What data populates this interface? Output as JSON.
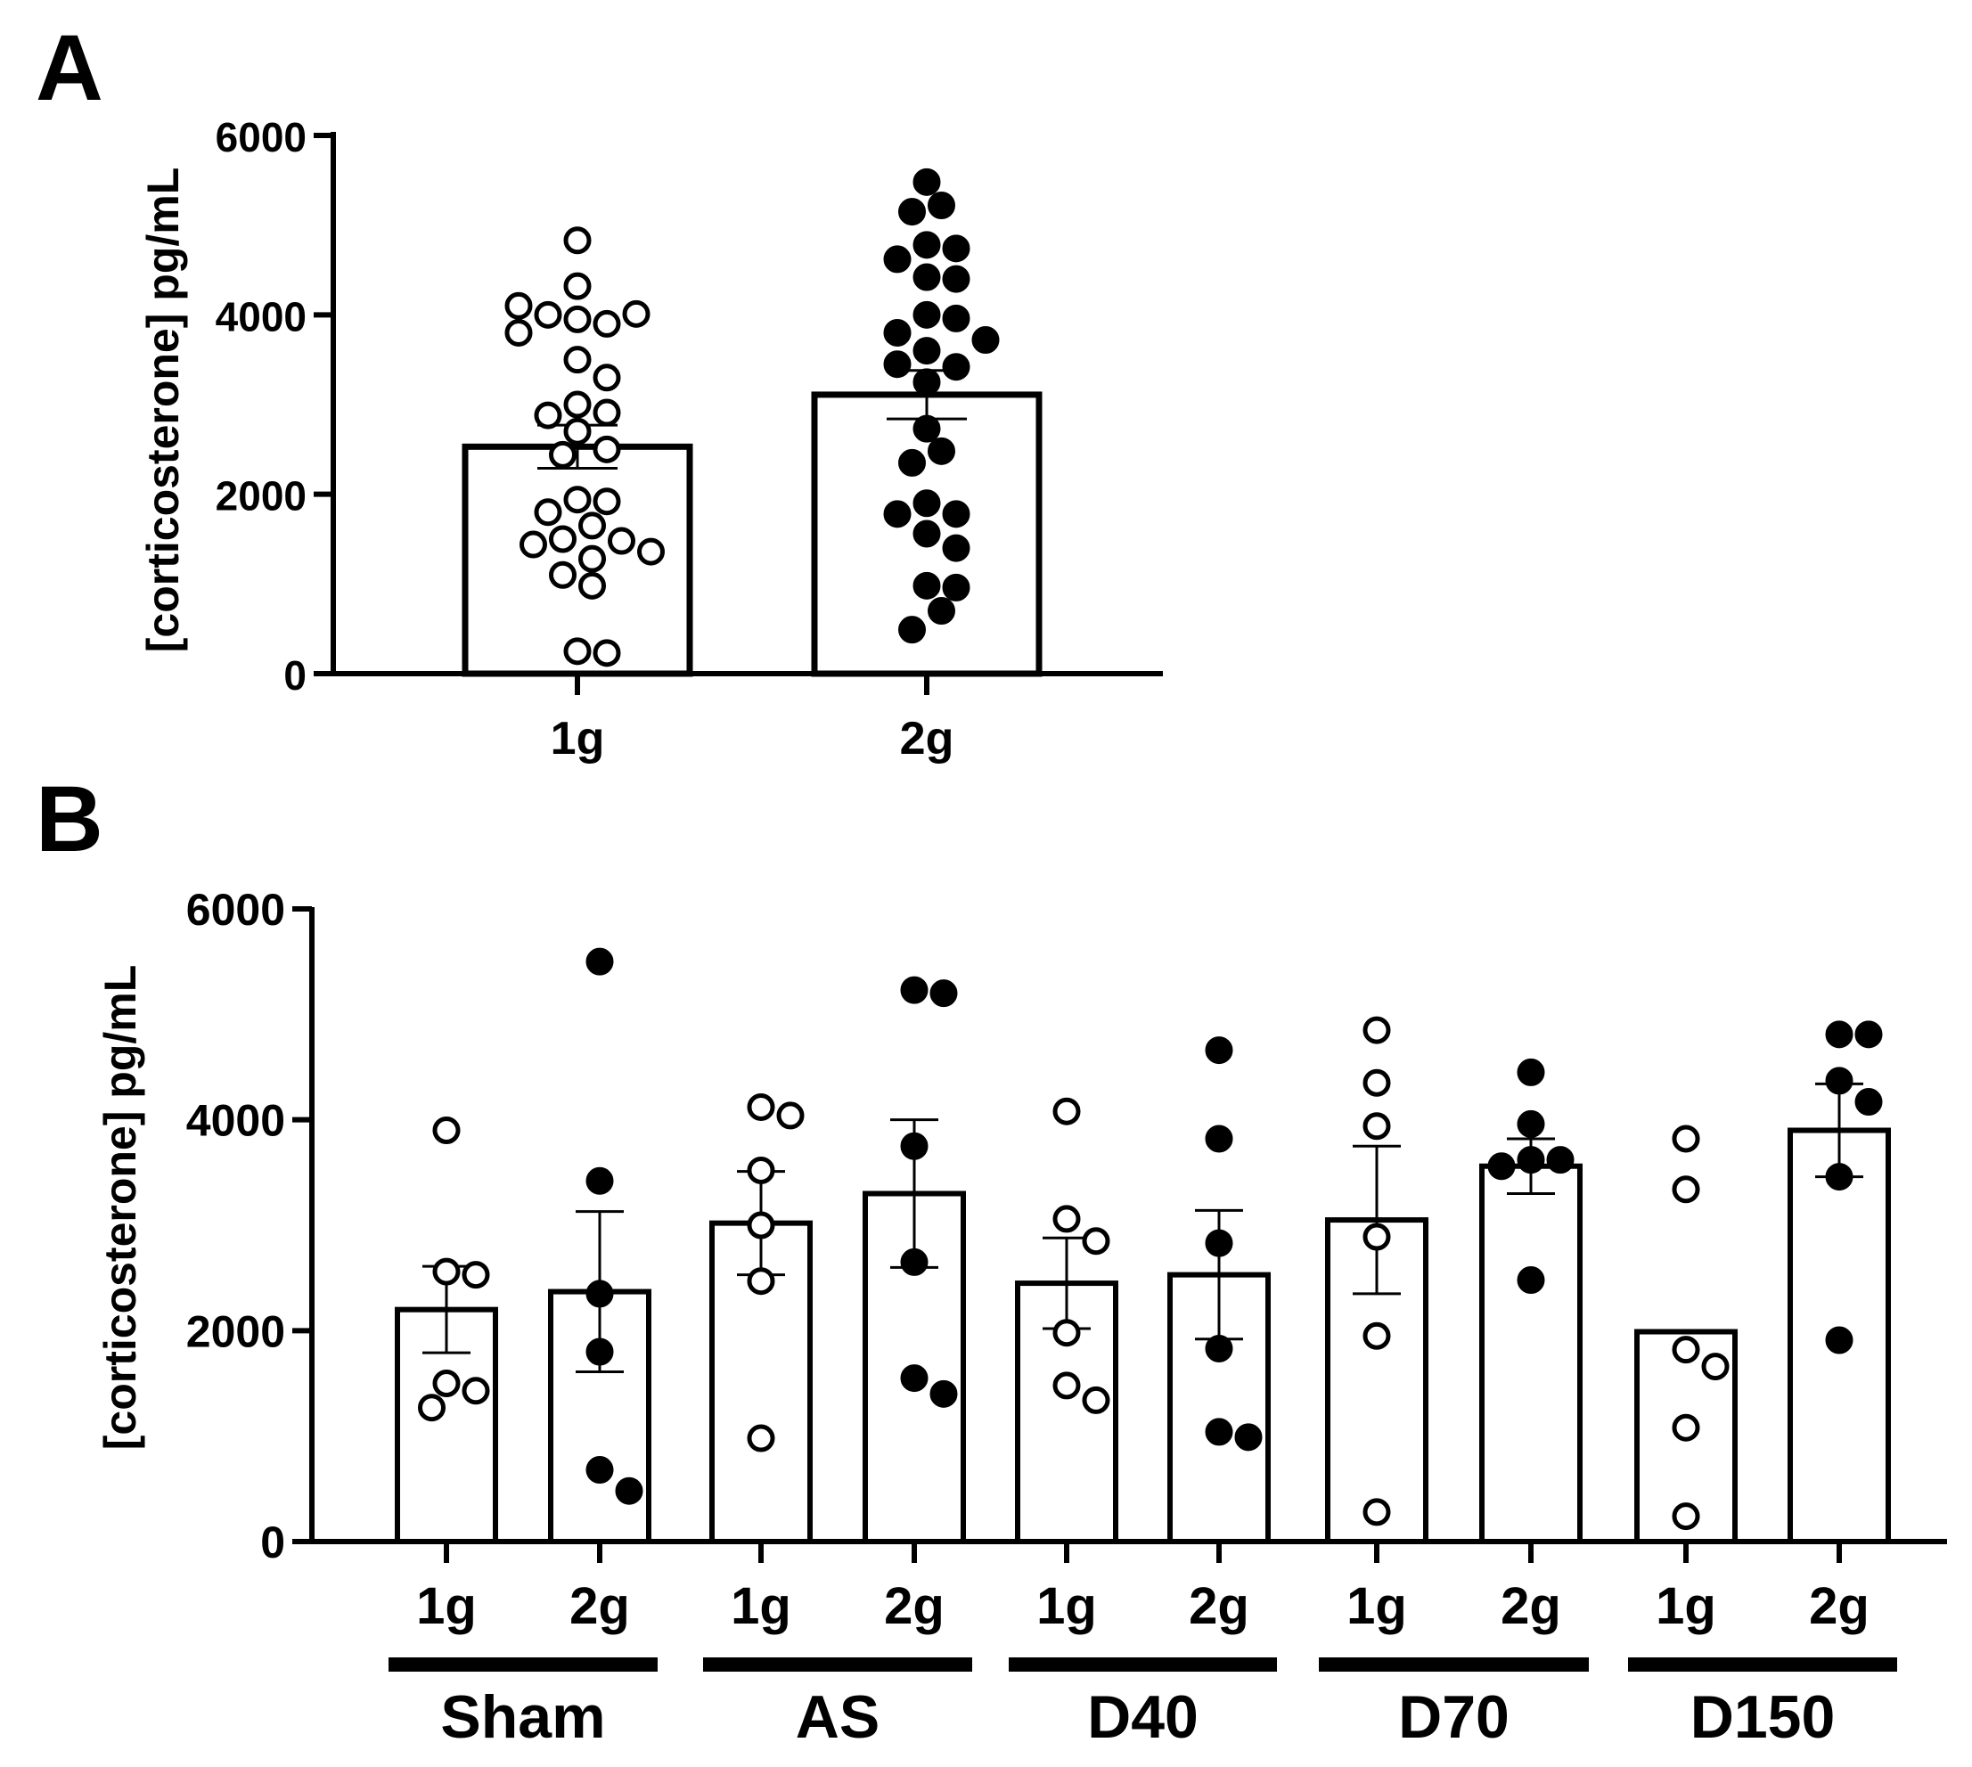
{
  "colors": {
    "stroke": "#000000",
    "open_fill": "#ffffff",
    "filled_fill": "#000000"
  },
  "chart_data": [
    {
      "panel_label": "A",
      "type": "bar",
      "title": "",
      "xlabel": "",
      "ylabel": "[corticosterone] pg/mL",
      "ylim": [
        0,
        6000
      ],
      "yticks": [
        0,
        2000,
        4000,
        6000
      ],
      "categories": [
        "1g",
        "2g"
      ],
      "values": [
        2530,
        3110
      ],
      "sem": [
        240,
        270
      ],
      "marker": [
        "open",
        "filled"
      ],
      "points": [
        [
          3950,
          3900,
          4830,
          4320,
          4000,
          4010,
          4100,
          3800,
          3500,
          3300,
          3000,
          2910,
          2880,
          2700,
          2500,
          2440,
          1940,
          1920,
          1800,
          1650,
          1500,
          1480,
          1440,
          1360,
          1280,
          1100,
          980,
          250,
          230
        ],
        [
          5480,
          5220,
          5150,
          4780,
          4740,
          4620,
          4420,
          4400,
          4000,
          3960,
          3800,
          3720,
          3600,
          3420,
          3450,
          3250,
          2730,
          2480,
          2350,
          1900,
          1780,
          1780,
          1560,
          1400,
          980,
          960,
          700,
          490
        ]
      ]
    },
    {
      "panel_label": "B",
      "type": "bar",
      "title": "",
      "xlabel": "",
      "ylabel": "[corticosterone] pg/mL",
      "ylim": [
        0,
        6000
      ],
      "yticks": [
        0,
        2000,
        4000,
        6000
      ],
      "categories": [
        "1g",
        "2g",
        "1g",
        "2g",
        "1g",
        "2g",
        "1g",
        "2g",
        "1g",
        "2g"
      ],
      "groups": [
        "Sham",
        "AS",
        "D40",
        "D70",
        "D150"
      ],
      "values": [
        2200,
        2370,
        3020,
        3300,
        2450,
        2530,
        3050,
        3560,
        1990,
        3900
      ],
      "sem": [
        410,
        760,
        490,
        700,
        430,
        610,
        700,
        260,
        0,
        440
      ],
      "marker": [
        "open",
        "filled",
        "open",
        "filled",
        "open",
        "filled",
        "open",
        "filled",
        "open",
        "filled"
      ],
      "points": [
        [
          3900,
          2560,
          2530,
          1500,
          1430,
          1270
        ],
        [
          5500,
          3420,
          2350,
          1800,
          680,
          480
        ],
        [
          4120,
          4040,
          3520,
          3000,
          2470,
          980
        ],
        [
          5230,
          5200,
          3750,
          2650,
          1550,
          1400
        ],
        [
          4080,
          3060,
          2850,
          1980,
          1480,
          1340
        ],
        [
          4660,
          3820,
          2830,
          1830,
          1040,
          990
        ],
        [
          4850,
          4350,
          3940,
          2890,
          1950,
          280
        ],
        [
          4450,
          3960,
          3620,
          3620,
          3560,
          2480
        ],
        [
          3820,
          3340,
          1820,
          1660,
          1080,
          240
        ],
        [
          4810,
          4810,
          4370,
          4170,
          3460,
          1910
        ]
      ]
    }
  ]
}
